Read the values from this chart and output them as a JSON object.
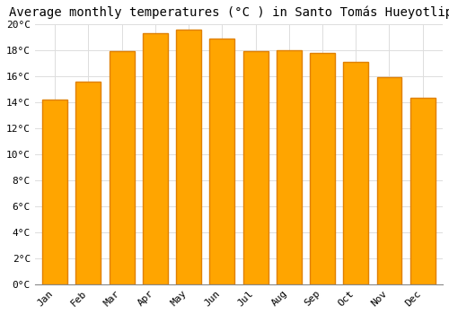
{
  "title": "Average monthly temperatures (°C ) in Santo Tomás Hueyotlipan",
  "months": [
    "Jan",
    "Feb",
    "Mar",
    "Apr",
    "May",
    "Jun",
    "Jul",
    "Aug",
    "Sep",
    "Oct",
    "Nov",
    "Dec"
  ],
  "temperatures": [
    14.2,
    15.6,
    17.9,
    19.3,
    19.6,
    18.9,
    17.9,
    18.0,
    17.8,
    17.1,
    15.9,
    14.3
  ],
  "bar_color": "#FFA500",
  "bar_edge_color": "#E08000",
  "background_color": "#FFFFFF",
  "grid_color": "#DDDDDD",
  "ylim": [
    0,
    20
  ],
  "ytick_step": 2,
  "title_fontsize": 10,
  "tick_fontsize": 8,
  "figsize": [
    5.0,
    3.5
  ],
  "dpi": 100
}
